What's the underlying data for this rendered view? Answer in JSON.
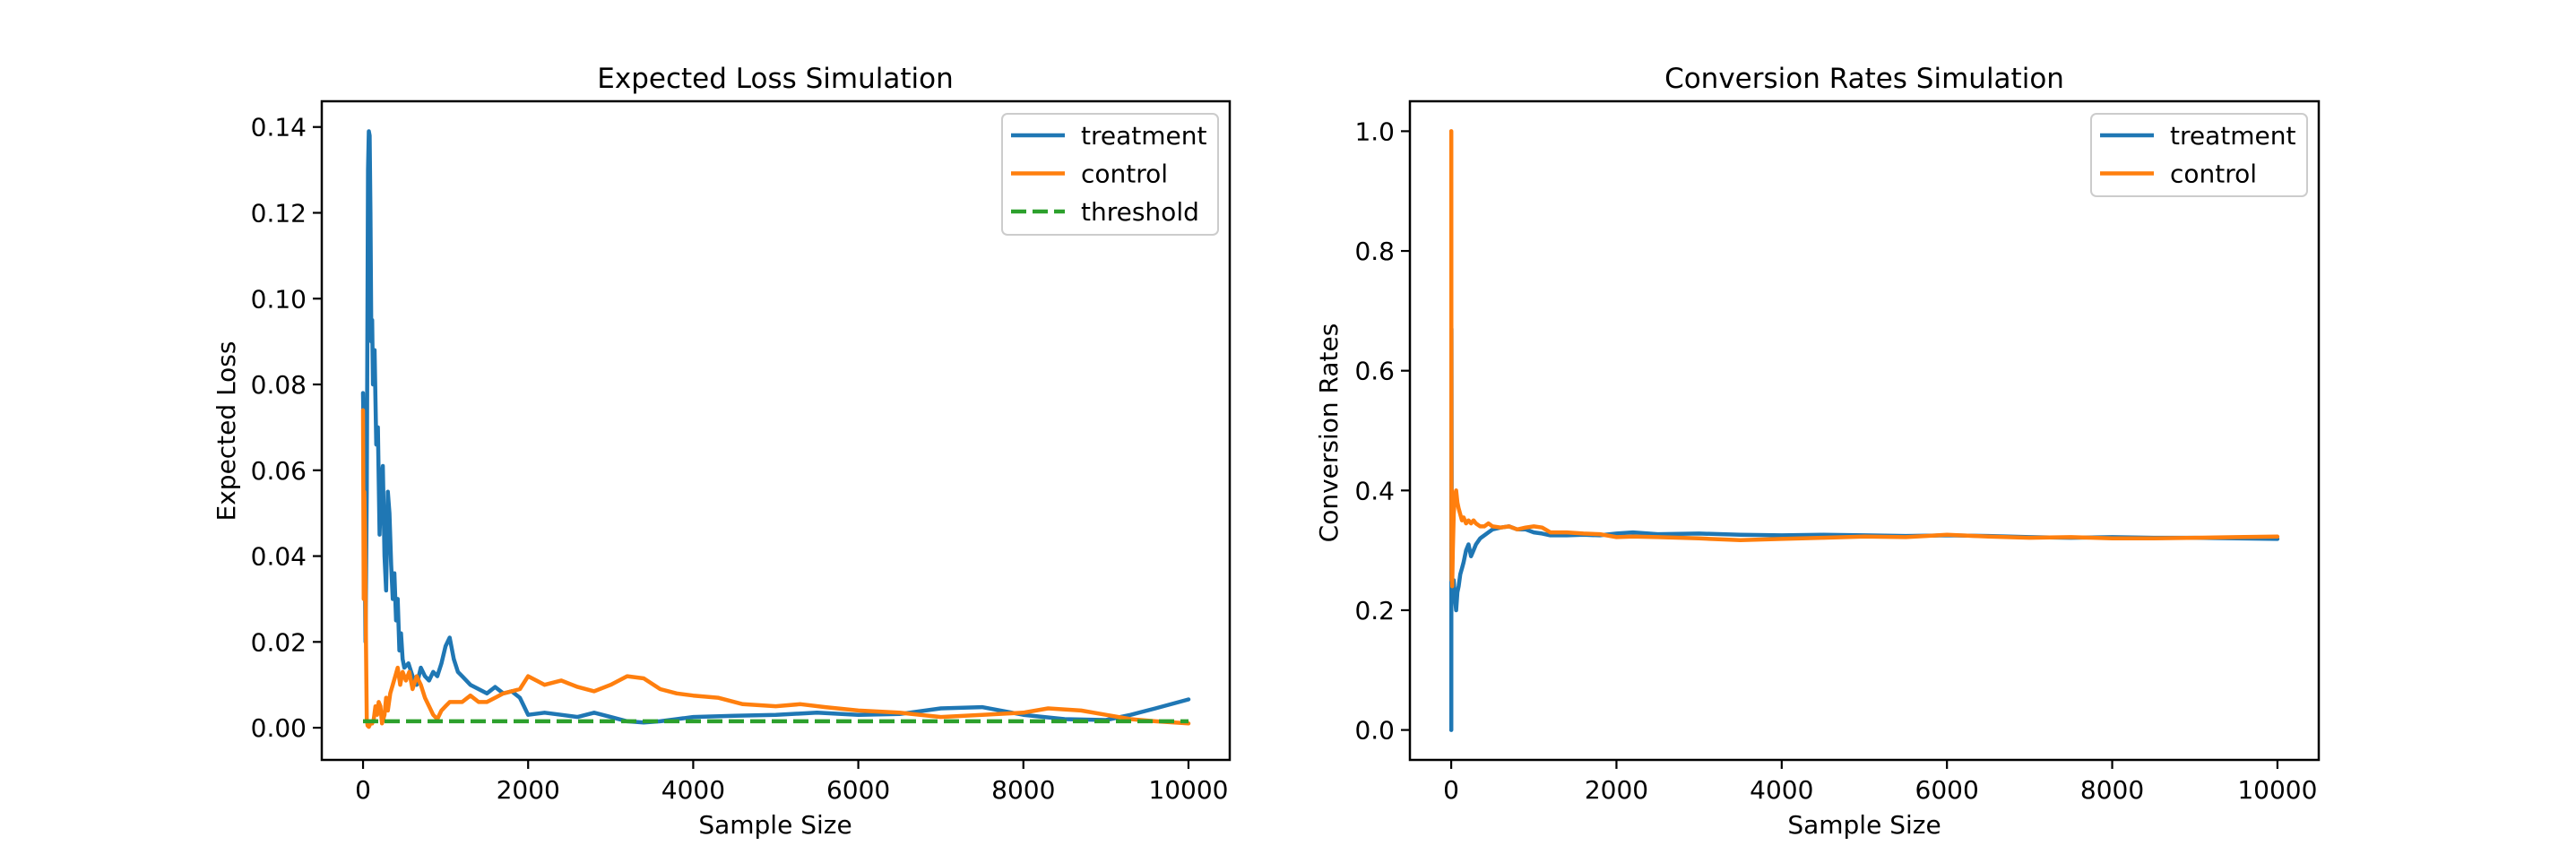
{
  "chart_data": [
    {
      "type": "line",
      "title": "Expected Loss Simulation",
      "xlabel": "Sample Size",
      "ylabel": "Expected Loss",
      "xlim": [
        -500,
        10500
      ],
      "ylim": [
        -0.0075,
        0.146
      ],
      "xticks": [
        0,
        2000,
        4000,
        6000,
        8000,
        10000
      ],
      "xtick_labels": [
        "0",
        "2000",
        "4000",
        "6000",
        "8000",
        "10000"
      ],
      "yticks": [
        0.0,
        0.02,
        0.04,
        0.06,
        0.08,
        0.1,
        0.12,
        0.14
      ],
      "ytick_labels": [
        "0.00",
        "0.02",
        "0.04",
        "0.06",
        "0.08",
        "0.10",
        "0.12",
        "0.14"
      ],
      "grid": false,
      "legend": "top-right",
      "series": [
        {
          "name": "treatment",
          "color": "#1f77b4",
          "style": "solid",
          "x": [
            0,
            10,
            20,
            30,
            45,
            60,
            70,
            80,
            90,
            100,
            110,
            120,
            140,
            160,
            180,
            200,
            220,
            240,
            260,
            280,
            300,
            320,
            340,
            360,
            380,
            400,
            420,
            440,
            460,
            480,
            500,
            550,
            600,
            650,
            700,
            750,
            800,
            850,
            900,
            950,
            1000,
            1050,
            1100,
            1150,
            1200,
            1300,
            1400,
            1500,
            1600,
            1700,
            1800,
            1900,
            1950,
            2000,
            2200,
            2400,
            2600,
            2800,
            3000,
            3200,
            3400,
            3600,
            3800,
            4000,
            4500,
            5000,
            5500,
            6000,
            6500,
            7000,
            7500,
            8000,
            8500,
            9000,
            9300,
            9600,
            10000
          ],
          "y": [
            0.078,
            0.065,
            0.04,
            0.02,
            0.055,
            0.13,
            0.139,
            0.138,
            0.12,
            0.09,
            0.095,
            0.08,
            0.088,
            0.066,
            0.07,
            0.045,
            0.058,
            0.061,
            0.04,
            0.032,
            0.055,
            0.05,
            0.038,
            0.03,
            0.036,
            0.025,
            0.03,
            0.018,
            0.022,
            0.016,
            0.014,
            0.015,
            0.012,
            0.01,
            0.014,
            0.012,
            0.011,
            0.013,
            0.012,
            0.015,
            0.019,
            0.021,
            0.016,
            0.013,
            0.012,
            0.01,
            0.009,
            0.008,
            0.0095,
            0.008,
            0.0085,
            0.007,
            0.005,
            0.003,
            0.0035,
            0.003,
            0.0025,
            0.0035,
            0.0025,
            0.0015,
            0.0012,
            0.0015,
            0.002,
            0.0025,
            0.0028,
            0.003,
            0.0035,
            0.003,
            0.0032,
            0.0045,
            0.0048,
            0.003,
            0.002,
            0.0018,
            0.003,
            0.0045,
            0.0066
          ]
        },
        {
          "name": "control",
          "color": "#ff7f0e",
          "style": "solid",
          "x": [
            0,
            8,
            15,
            25,
            35,
            45,
            55,
            70,
            90,
            110,
            130,
            150,
            170,
            190,
            210,
            230,
            260,
            280,
            300,
            330,
            360,
            390,
            420,
            450,
            480,
            520,
            560,
            600,
            650,
            700,
            750,
            800,
            850,
            900,
            950,
            1000,
            1050,
            1100,
            1200,
            1300,
            1400,
            1500,
            1600,
            1700,
            1800,
            1900,
            2000,
            2100,
            2200,
            2400,
            2600,
            2800,
            3000,
            3200,
            3400,
            3600,
            3800,
            4000,
            4300,
            4600,
            5000,
            5300,
            5600,
            6000,
            6500,
            7000,
            7500,
            8000,
            8300,
            8700,
            9000,
            9300,
            9600,
            10000
          ],
          "y": [
            0.074,
            0.03,
            0.055,
            0.045,
            0.02,
            0.002,
            0.0005,
            0.0002,
            0.001,
            0.001,
            0.002,
            0.005,
            0.003,
            0.006,
            0.005,
            0.001,
            0.003,
            0.007,
            0.004,
            0.008,
            0.01,
            0.012,
            0.014,
            0.01,
            0.013,
            0.011,
            0.013,
            0.009,
            0.012,
            0.01,
            0.007,
            0.005,
            0.003,
            0.002,
            0.004,
            0.005,
            0.006,
            0.006,
            0.006,
            0.0075,
            0.006,
            0.006,
            0.007,
            0.008,
            0.0085,
            0.009,
            0.012,
            0.011,
            0.01,
            0.011,
            0.0095,
            0.0085,
            0.01,
            0.012,
            0.0115,
            0.009,
            0.008,
            0.0075,
            0.007,
            0.0055,
            0.005,
            0.0055,
            0.0048,
            0.004,
            0.0035,
            0.0025,
            0.003,
            0.0035,
            0.0045,
            0.004,
            0.003,
            0.002,
            0.0015,
            0.001
          ]
        },
        {
          "name": "threshold",
          "color": "#2ca02c",
          "style": "dashed",
          "x": [
            0,
            10000
          ],
          "y": [
            0.0015,
            0.0015
          ]
        }
      ]
    },
    {
      "type": "line",
      "title": "Conversion Rates Simulation",
      "xlabel": "Sample Size",
      "ylabel": "Conversion Rates",
      "xlim": [
        -500,
        10500
      ],
      "ylim": [
        -0.05,
        1.05
      ],
      "xticks": [
        0,
        2000,
        4000,
        6000,
        8000,
        10000
      ],
      "xtick_labels": [
        "0",
        "2000",
        "4000",
        "6000",
        "8000",
        "10000"
      ],
      "yticks": [
        0.0,
        0.2,
        0.4,
        0.6,
        0.8,
        1.0
      ],
      "ytick_labels": [
        "0.0",
        "0.2",
        "0.4",
        "0.6",
        "0.8",
        "1.0"
      ],
      "grid": false,
      "legend": "top-right",
      "series": [
        {
          "name": "treatment",
          "color": "#1f77b4",
          "style": "solid",
          "x": [
            0,
            1,
            2,
            3,
            5,
            8,
            12,
            20,
            30,
            45,
            60,
            75,
            90,
            110,
            130,
            150,
            180,
            210,
            240,
            270,
            300,
            350,
            400,
            450,
            500,
            600,
            700,
            800,
            900,
            1000,
            1100,
            1200,
            1400,
            1600,
            1800,
            2000,
            2200,
            2500,
            3000,
            3500,
            4000,
            4500,
            5000,
            5500,
            6000,
            6500,
            7000,
            7500,
            8000,
            8500,
            9000,
            9500,
            10000
          ],
          "y": [
            0.0,
            0.0,
            0.5,
            0.67,
            0.4,
            0.33,
            0.25,
            0.24,
            0.25,
            0.22,
            0.2,
            0.23,
            0.24,
            0.26,
            0.27,
            0.28,
            0.3,
            0.31,
            0.29,
            0.3,
            0.31,
            0.32,
            0.325,
            0.33,
            0.335,
            0.338,
            0.34,
            0.335,
            0.335,
            0.33,
            0.328,
            0.325,
            0.325,
            0.326,
            0.325,
            0.328,
            0.33,
            0.327,
            0.328,
            0.326,
            0.325,
            0.326,
            0.325,
            0.324,
            0.325,
            0.324,
            0.322,
            0.321,
            0.322,
            0.321,
            0.321,
            0.32,
            0.319
          ]
        },
        {
          "name": "control",
          "color": "#ff7f0e",
          "style": "solid",
          "x": [
            0,
            1,
            2,
            3,
            5,
            8,
            12,
            20,
            30,
            45,
            60,
            75,
            90,
            110,
            130,
            150,
            180,
            210,
            240,
            270,
            300,
            350,
            400,
            450,
            500,
            600,
            700,
            800,
            900,
            1000,
            1100,
            1200,
            1400,
            1600,
            1800,
            2000,
            2200,
            2500,
            3000,
            3500,
            4000,
            4500,
            5000,
            5500,
            6000,
            6500,
            7000,
            7500,
            8000,
            8500,
            9000,
            9500,
            10000
          ],
          "y": [
            1.0,
            1.0,
            0.5,
            0.33,
            0.25,
            0.4,
            0.24,
            0.3,
            0.36,
            0.39,
            0.4,
            0.38,
            0.37,
            0.36,
            0.35,
            0.355,
            0.345,
            0.35,
            0.345,
            0.35,
            0.345,
            0.34,
            0.34,
            0.345,
            0.34,
            0.338,
            0.34,
            0.335,
            0.338,
            0.34,
            0.338,
            0.33,
            0.33,
            0.328,
            0.327,
            0.322,
            0.323,
            0.322,
            0.32,
            0.317,
            0.319,
            0.321,
            0.323,
            0.322,
            0.326,
            0.323,
            0.321,
            0.322,
            0.32,
            0.32,
            0.321,
            0.322,
            0.323
          ]
        }
      ]
    }
  ]
}
